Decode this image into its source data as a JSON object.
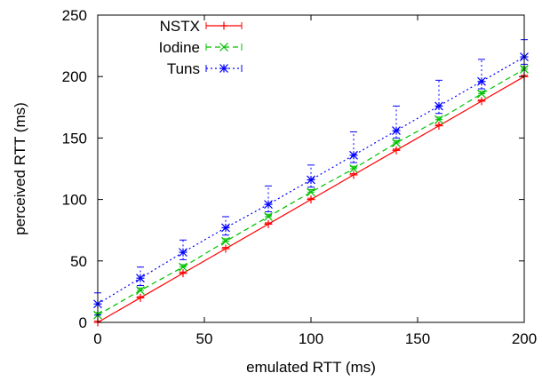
{
  "chart_data": {
    "type": "line",
    "xlabel": "emulated RTT (ms)",
    "ylabel": "perceived RTT (ms)",
    "xlim": [
      0,
      200
    ],
    "ylim": [
      0,
      250
    ],
    "xticks": [
      0,
      50,
      100,
      150,
      200
    ],
    "yticks": [
      0,
      50,
      100,
      150,
      200,
      250
    ],
    "grid": false,
    "legend_position": "top-left",
    "x": [
      0,
      20,
      40,
      60,
      80,
      100,
      120,
      140,
      160,
      180,
      200
    ],
    "series": [
      {
        "name": "NSTX",
        "color": "#ff0000",
        "marker": "plus",
        "dash": "solid",
        "values": [
          0,
          20,
          40,
          60,
          80,
          100,
          120,
          140,
          160,
          180,
          200
        ],
        "err_low": [
          0,
          0,
          0,
          0,
          0,
          0,
          0,
          0,
          0,
          0,
          0
        ],
        "err_high": [
          1,
          1,
          1,
          1,
          1,
          1,
          1,
          1,
          1,
          1,
          1
        ]
      },
      {
        "name": "Iodine",
        "color": "#00c000",
        "marker": "cross",
        "dash": "dashed",
        "values": [
          6,
          26,
          45,
          66,
          86,
          106,
          125,
          146,
          165,
          186,
          206
        ],
        "err_low": [
          0,
          0,
          0,
          0,
          0,
          0,
          0,
          0,
          0,
          0,
          0
        ],
        "err_high": [
          2,
          2,
          2,
          2,
          2,
          2,
          2,
          2,
          2,
          2,
          2
        ]
      },
      {
        "name": "Tuns",
        "color": "#0000ff",
        "marker": "star",
        "dash": "dotted",
        "values": [
          15,
          36,
          57,
          77,
          96,
          116,
          136,
          156,
          176,
          196,
          216
        ],
        "err_low": [
          9,
          6,
          6,
          6,
          6,
          6,
          6,
          6,
          6,
          6,
          6
        ],
        "err_high": [
          9,
          9,
          10,
          9,
          15,
          12,
          19,
          20,
          21,
          18,
          14
        ]
      }
    ]
  }
}
